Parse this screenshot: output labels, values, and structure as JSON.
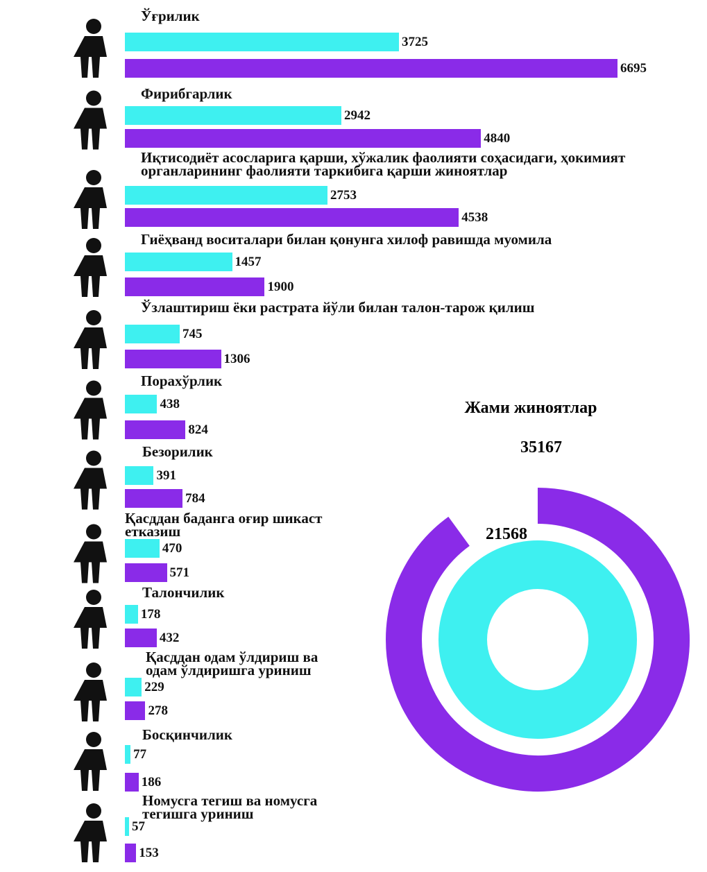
{
  "chart_data": [
    {
      "type": "hbar",
      "categories": [
        "Ўғрилик",
        "Фирибгарлик",
        "Иқтисодиёт асосларига қарши, хўжалик фаолияти соҳасидаги, ҳокимият органларининг фаолияти таркибига қарши жиноятлар",
        "Гиёҳванд воситалари билан қонунга хилоф равишда муомила",
        "Ўзлаштириш ёки растрата йўли билан талон-тарож қилиш",
        "Порахўрлик",
        "Безорилик",
        "Қасддан баданга оғир шикаст етказиш",
        "Талончилик",
        "Қасддан одам ўлдириш ва одам ўлдиришга уриниш",
        "Босқинчилик",
        "Номусга тегиш ва номусга тегишга уриниш"
      ],
      "series": [
        {
          "color": "#3ef0f0",
          "values": [
            3725,
            2942,
            2753,
            1457,
            745,
            438,
            391,
            470,
            178,
            229,
            77,
            57
          ]
        },
        {
          "color": "#8a2be8",
          "values": [
            6695,
            4840,
            4538,
            1900,
            1306,
            824,
            784,
            571,
            432,
            278,
            186,
            153
          ]
        }
      ]
    },
    {
      "type": "donut",
      "title": "Жами жиноятлар",
      "values": [
        35167,
        21568
      ],
      "colors": [
        "#8a2be8",
        "#3ef0f0"
      ]
    }
  ]
}
